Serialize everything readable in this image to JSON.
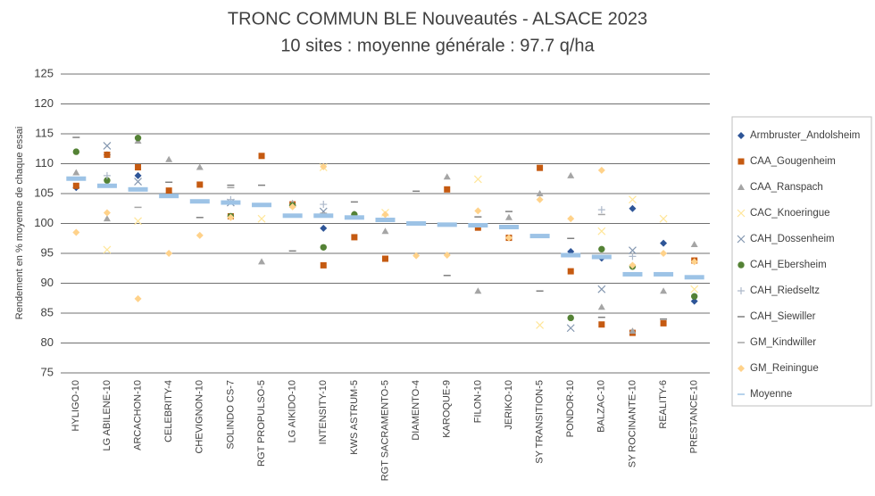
{
  "chart_data": {
    "type": "scatter",
    "title": "TRONC COMMUN BLE Nouveautés - ALSACE 2023",
    "subtitle": "10 sites : moyenne générale : 97.7 q/ha",
    "y_label": "Rendement en % moyenne de chaque essai",
    "categories": [
      "HYLIGO-10",
      "LG ABILENE-10",
      "ARCACHON-10",
      "CELEBRITY-4",
      "CHEVIGNON-10",
      "SOLINDO CS-7",
      "RGT PROPULSO-5",
      "LG AIKIDO-10",
      "INTENSITY-10",
      "KWS ASTRUM-5",
      "RGT SACRAMENTO-5",
      "DIAMENTO-4",
      "KAROQUE-9",
      "FILON-10",
      "JERIKO-10",
      "SY TRANSITION-5",
      "PONDOR-10",
      "BALZAC-10",
      "SY ROCINANTE-10",
      "REALITY-6",
      "PRESTANCE-10"
    ],
    "ylim": [
      75,
      125
    ],
    "yticks": [
      75,
      80,
      85,
      90,
      95,
      100,
      105,
      110,
      115,
      120,
      125
    ],
    "grid": true,
    "series": [
      {
        "name": "Armbruster_Andolsheim",
        "color": "#2e5597",
        "marker": "diamond",
        "values": [
          106,
          111.5,
          108,
          null,
          null,
          null,
          null,
          103,
          99.2,
          null,
          null,
          null,
          null,
          null,
          null,
          null,
          95.3,
          94.2,
          102.5,
          96.7,
          87
        ]
      },
      {
        "name": "CAA_Gougenheim",
        "color": "#c55a11",
        "marker": "square",
        "values": [
          106.3,
          111.5,
          109.4,
          105.5,
          106.5,
          101.2,
          111.3,
          103.2,
          93,
          97.7,
          94.1,
          null,
          105.7,
          99.3,
          97.6,
          109.3,
          92,
          83.1,
          81.7,
          83.3,
          93.8
        ]
      },
      {
        "name": "CAA_Ranspach",
        "color": "#a5a5a5",
        "marker": "triangle",
        "values": [
          108.5,
          100.8,
          113.8,
          110.7,
          109.4,
          null,
          93.6,
          103.4,
          null,
          101.6,
          98.7,
          null,
          107.8,
          88.7,
          101,
          105,
          108,
          86,
          82,
          88.7,
          96.5
        ]
      },
      {
        "name": "CAC_Knoeringue",
        "color": "#ffe699",
        "marker": "x",
        "values": [
          null,
          95.6,
          100.4,
          null,
          null,
          null,
          100.8,
          null,
          109.4,
          null,
          101.8,
          null,
          null,
          107.4,
          null,
          83,
          null,
          98.7,
          104,
          100.8,
          89
        ]
      },
      {
        "name": "CAH_Dossenheim",
        "color": "#8497b0",
        "marker": "x",
        "values": [
          null,
          113,
          107,
          null,
          null,
          103.5,
          null,
          null,
          102,
          null,
          null,
          null,
          null,
          null,
          null,
          null,
          82.5,
          89,
          95.5,
          null,
          null
        ]
      },
      {
        "name": "CAH_Ebersheim",
        "color": "#548235",
        "marker": "circle",
        "values": [
          112,
          107.2,
          114.3,
          null,
          null,
          101.2,
          null,
          103,
          96,
          101.5,
          null,
          null,
          null,
          null,
          null,
          null,
          84.2,
          95.7,
          92.8,
          null,
          87.8
        ]
      },
      {
        "name": "CAH_Riedseltz",
        "color": "#adb9ca",
        "marker": "plus",
        "values": [
          null,
          108,
          null,
          null,
          null,
          104,
          null,
          null,
          103.2,
          null,
          null,
          null,
          null,
          null,
          null,
          null,
          null,
          102.3,
          94.5,
          null,
          null
        ]
      },
      {
        "name": "CAH_Siewiller",
        "color": "#7f7f7f",
        "marker": "dash",
        "values": [
          114.4,
          null,
          null,
          106.9,
          101,
          106.4,
          106.4,
          95.4,
          null,
          103.6,
          null,
          105.4,
          91.3,
          101.1,
          102,
          88.7,
          97.5,
          84.3,
          null,
          84,
          null
        ]
      },
      {
        "name": "GM_Kindwiller",
        "color": "#a6a6a6",
        "marker": "dash",
        "values": [
          107.3,
          null,
          102.7,
          null,
          null,
          106,
          null,
          null,
          101.7,
          null,
          null,
          null,
          null,
          null,
          null,
          null,
          null,
          101.5,
          null,
          null,
          null
        ]
      },
      {
        "name": "GM_Reiningue",
        "color": "#ffd28a",
        "marker": "diamond",
        "values": [
          98.5,
          101.8,
          87.4,
          95,
          98,
          101,
          null,
          102.8,
          109.5,
          null,
          101.5,
          94.6,
          94.7,
          102.1,
          97.6,
          104,
          100.8,
          108.9,
          93,
          95,
          93.6
        ]
      },
      {
        "name": "Moyenne",
        "color": "#9dc3e6",
        "marker": "wide",
        "values": [
          107.5,
          106.3,
          105.7,
          104.6,
          103.7,
          103.5,
          103.1,
          101.3,
          101.3,
          101.0,
          100.6,
          100.0,
          99.8,
          99.7,
          99.4,
          97.9,
          94.7,
          94.4,
          91.5,
          91.5,
          91.0
        ]
      }
    ]
  }
}
